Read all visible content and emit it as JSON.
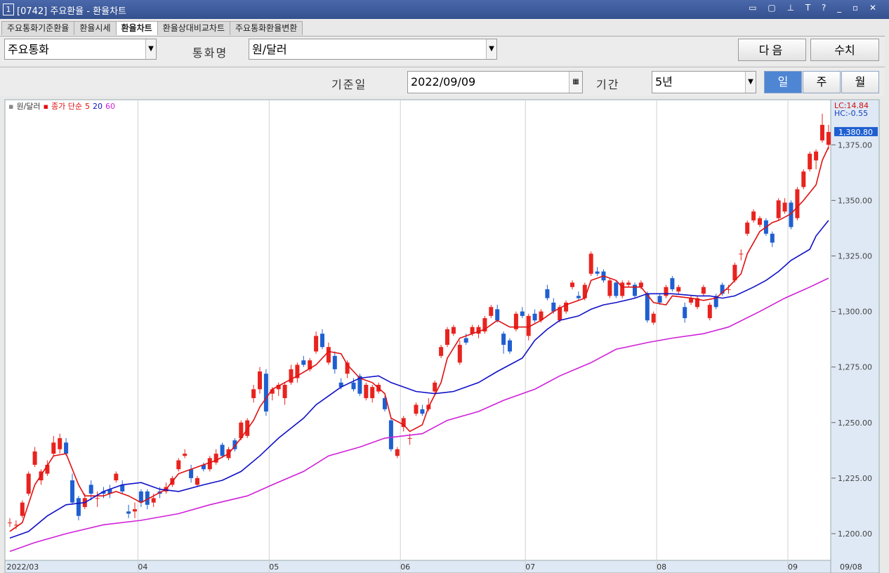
{
  "window": {
    "badge": "1",
    "title": "[0742] 주요환율 - 환율차트"
  },
  "tabs": [
    "주요통화기준환율",
    "환율시세",
    "환율차트",
    "환율상대비교차트",
    "주요통화환율변환"
  ],
  "active_tab": 2,
  "toolbar": {
    "group_select": "주요통화",
    "currency_label": "통화명",
    "currency_select": "원/달러",
    "buttons": [
      "다음",
      "수치"
    ],
    "date_label": "기준일",
    "date_value": "2022/09/09",
    "period_label": "기간",
    "period_select": "5년",
    "interval_buttons": [
      "일",
      "주",
      "월"
    ],
    "active_interval": 0
  },
  "chart_data": {
    "type": "candlestick",
    "legend": {
      "symbol": "원/달러",
      "ma_label": "종가 단순"
    },
    "lc_label": "LC:14.84",
    "hc_label": "HC:-0.55",
    "end_date_label": "09/08",
    "current_price": {
      "value": 1380.8,
      "label": "1,380.80"
    },
    "up_color": "#e8231e",
    "down_color": "#1f5fd0",
    "grid": true,
    "ylim": [
      1188.3,
      1395
    ],
    "yticks": [
      {
        "value": 1200,
        "label": "1,200.00"
      },
      {
        "value": 1225,
        "label": "1,225.00"
      },
      {
        "value": 1250,
        "label": "1,250.00"
      },
      {
        "value": 1275,
        "label": "1,275.00"
      },
      {
        "value": 1300,
        "label": "1,300.00"
      },
      {
        "value": 1325,
        "label": "1,325.00"
      },
      {
        "value": 1350,
        "label": "1,350.00"
      },
      {
        "value": 1375,
        "label": "1,375.00"
      }
    ],
    "categories": [
      "2022/03",
      null,
      null,
      null,
      null,
      null,
      null,
      null,
      null,
      null,
      null,
      null,
      null,
      null,
      null,
      null,
      null,
      null,
      null,
      null,
      null,
      "04",
      null,
      null,
      null,
      null,
      null,
      null,
      null,
      null,
      null,
      null,
      null,
      null,
      null,
      null,
      null,
      null,
      null,
      null,
      null,
      null,
      "05",
      null,
      null,
      null,
      null,
      null,
      null,
      null,
      null,
      null,
      null,
      null,
      null,
      null,
      null,
      null,
      null,
      null,
      null,
      null,
      null,
      "06",
      null,
      null,
      null,
      null,
      null,
      null,
      null,
      null,
      null,
      null,
      null,
      null,
      null,
      null,
      null,
      null,
      null,
      null,
      null,
      "07",
      null,
      null,
      null,
      null,
      null,
      null,
      null,
      null,
      null,
      null,
      null,
      null,
      null,
      null,
      null,
      null,
      null,
      null,
      null,
      null,
      "08",
      null,
      null,
      null,
      null,
      null,
      null,
      null,
      null,
      null,
      null,
      null,
      null,
      null,
      null,
      null,
      null,
      null,
      null,
      null,
      null,
      "09",
      null,
      null,
      null,
      null,
      null
    ],
    "candles": [
      [
        1205,
        1207,
        1203,
        1205
      ],
      [
        1204,
        1206,
        1202,
        1204
      ],
      [
        1208,
        1215,
        1207,
        1214
      ],
      [
        1218,
        1228,
        1217,
        1227
      ],
      [
        1231,
        1239,
        1230,
        1237
      ],
      [
        1224,
        1229,
        1222,
        1228
      ],
      [
        1227,
        1233,
        1226,
        1231
      ],
      [
        1236,
        1244,
        1235,
        1241
      ],
      [
        1238,
        1245,
        1236,
        1243
      ],
      [
        1241,
        1243,
        1235,
        1236
      ],
      [
        1224,
        1227,
        1213,
        1214
      ],
      [
        1216,
        1217,
        1206,
        1208
      ],
      [
        1212,
        1218,
        1211,
        1216
      ],
      [
        1222,
        1224,
        1215,
        1218
      ],
      [
        1216,
        1219,
        1212,
        1216
      ],
      [
        1219,
        1221,
        1216,
        1218
      ],
      [
        1220,
        1222,
        1216,
        1218
      ],
      [
        1224,
        1228,
        1223,
        1227
      ],
      [
        1222,
        1224,
        1218,
        1219
      ],
      [
        1210,
        1213,
        1207,
        1209
      ],
      [
        1210,
        1214,
        1207,
        1211
      ],
      [
        1219,
        1220,
        1212,
        1214
      ],
      [
        1219,
        1220,
        1211,
        1213
      ],
      [
        1214,
        1218,
        1212,
        1216
      ],
      [
        1219,
        1221,
        1216,
        1218
      ],
      [
        1219,
        1223,
        1218,
        1221
      ],
      [
        1222,
        1226,
        1221,
        1225
      ],
      [
        1229,
        1234,
        1228,
        1233
      ],
      [
        1235,
        1238,
        1234,
        1236
      ],
      [
        1229,
        1231,
        1223,
        1225
      ],
      [
        1222,
        1226,
        1221,
        1225
      ],
      [
        1231,
        1232,
        1228,
        1229
      ],
      [
        1229,
        1235,
        1228,
        1234
      ],
      [
        1232,
        1238,
        1231,
        1236
      ],
      [
        1240,
        1241,
        1234,
        1235
      ],
      [
        1234,
        1239,
        1233,
        1238
      ],
      [
        1242,
        1243,
        1237,
        1238
      ],
      [
        1243,
        1251,
        1242,
        1250
      ],
      [
        1244,
        1252,
        1243,
        1251
      ],
      [
        1261,
        1267,
        1259,
        1265
      ],
      [
        1265,
        1275,
        1263,
        1273
      ],
      [
        1272,
        1274,
        1253,
        1255
      ],
      [
        1263,
        1266,
        1260,
        1265
      ],
      [
        1265,
        1268,
        1262,
        1267
      ],
      [
        1261,
        1268,
        1258,
        1267
      ],
      [
        1268,
        1276,
        1267,
        1274
      ],
      [
        1270,
        1277,
        1268,
        1276
      ],
      [
        1278,
        1280,
        1275,
        1276
      ],
      [
        1274,
        1279,
        1273,
        1278
      ],
      [
        1282,
        1291,
        1281,
        1289
      ],
      [
        1290,
        1292,
        1283,
        1284
      ],
      [
        1277,
        1286,
        1276,
        1284
      ],
      [
        1280,
        1282,
        1272,
        1274
      ],
      [
        1268,
        1270,
        1265,
        1266
      ],
      [
        1272,
        1278,
        1270,
        1277
      ],
      [
        1268,
        1270,
        1264,
        1265
      ],
      [
        1271,
        1272,
        1262,
        1263
      ],
      [
        1261,
        1268,
        1260,
        1267
      ],
      [
        1261,
        1267,
        1259,
        1266
      ],
      [
        1264,
        1268,
        1263,
        1267
      ],
      [
        1261,
        1262,
        1255,
        1256
      ],
      [
        1251,
        1252,
        1237,
        1238
      ],
      [
        1235,
        1239,
        1234,
        1238
      ],
      [
        1248,
        1253,
        1246,
        1252
      ],
      [
        1243,
        1245,
        1240,
        1243
      ],
      [
        1254,
        1259,
        1253,
        1258
      ],
      [
        1256,
        1258,
        1253,
        1254
      ],
      [
        1256,
        1261,
        1255,
        1258
      ],
      [
        1264,
        1269,
        1263,
        1268
      ],
      [
        1280,
        1285,
        1279,
        1284
      ],
      [
        1285,
        1293,
        1284,
        1292
      ],
      [
        1290,
        1294,
        1289,
        1293
      ],
      [
        1277,
        1287,
        1276,
        1285
      ],
      [
        1288,
        1290,
        1285,
        1286
      ],
      [
        1290,
        1294,
        1289,
        1293
      ],
      [
        1290,
        1294,
        1288,
        1293
      ],
      [
        1291,
        1298,
        1290,
        1297
      ],
      [
        1298,
        1303,
        1297,
        1302
      ],
      [
        1301,
        1303,
        1295,
        1296
      ],
      [
        1290,
        1291,
        1281,
        1285
      ],
      [
        1287,
        1288,
        1281,
        1282
      ],
      [
        1292,
        1300,
        1291,
        1299
      ],
      [
        1300,
        1302,
        1297,
        1298
      ],
      [
        1289,
        1299,
        1287,
        1298
      ],
      [
        1299,
        1301,
        1295,
        1296
      ],
      [
        1296,
        1301,
        1295,
        1300
      ],
      [
        1310,
        1312,
        1305,
        1306
      ],
      [
        1304,
        1306,
        1299,
        1300
      ],
      [
        1296,
        1303,
        1295,
        1302
      ],
      [
        1300,
        1305,
        1299,
        1304
      ],
      [
        1311,
        1314,
        1310,
        1313
      ],
      [
        1307,
        1309,
        1305,
        1306
      ],
      [
        1306,
        1313,
        1305,
        1312
      ],
      [
        1317,
        1327,
        1316,
        1326
      ],
      [
        1318,
        1320,
        1316,
        1317
      ],
      [
        1318,
        1319,
        1313,
        1314
      ],
      [
        1307,
        1315,
        1306,
        1314
      ],
      [
        1313,
        1314,
        1306,
        1307
      ],
      [
        1307,
        1314,
        1306,
        1313
      ],
      [
        1312,
        1314,
        1311,
        1313
      ],
      [
        1312,
        1313,
        1306,
        1307
      ],
      [
        1311,
        1314,
        1310,
        1313
      ],
      [
        1308,
        1309,
        1295,
        1296
      ],
      [
        1295,
        1300,
        1294,
        1299
      ],
      [
        1307,
        1308,
        1303,
        1304
      ],
      [
        1307,
        1312,
        1306,
        1311
      ],
      [
        1315,
        1316,
        1309,
        1310
      ],
      [
        1309,
        1312,
        1308,
        1311
      ],
      [
        1302,
        1304,
        1295,
        1297
      ],
      [
        1304,
        1307,
        1303,
        1306
      ],
      [
        1302,
        1307,
        1301,
        1306
      ],
      [
        1308,
        1312,
        1307,
        1311
      ],
      [
        1297,
        1304,
        1296,
        1303
      ],
      [
        1307,
        1308,
        1301,
        1302
      ],
      [
        1312,
        1313,
        1307,
        1308
      ],
      [
        1310,
        1312,
        1308,
        1310
      ],
      [
        1314,
        1322,
        1313,
        1321
      ],
      [
        1326,
        1328,
        1323,
        1326
      ],
      [
        1335,
        1341,
        1334,
        1340
      ],
      [
        1341,
        1346,
        1340,
        1345
      ],
      [
        1339,
        1343,
        1338,
        1342
      ],
      [
        1341,
        1342,
        1334,
        1335
      ],
      [
        1335,
        1336,
        1329,
        1331
      ],
      [
        1342,
        1351,
        1341,
        1350
      ],
      [
        1345,
        1351,
        1344,
        1349
      ],
      [
        1349,
        1350,
        1337,
        1338
      ],
      [
        1342,
        1356,
        1341,
        1355
      ],
      [
        1356,
        1364,
        1355,
        1363
      ],
      [
        1364,
        1372,
        1363,
        1371
      ],
      [
        1368,
        1373,
        1364,
        1372
      ],
      [
        1377,
        1389,
        1376,
        1384
      ],
      [
        1375,
        1384,
        1373,
        1380.8
      ]
    ],
    "series": [
      {
        "name": "5",
        "color": "#e01010",
        "x": [
          0,
          2,
          4,
          7,
          9,
          11,
          12,
          15,
          17,
          19,
          21,
          23,
          25,
          27,
          29,
          31,
          33,
          35,
          37,
          39,
          40,
          42,
          44,
          46,
          49,
          51,
          53,
          54,
          56,
          58,
          60,
          61,
          63,
          64,
          66,
          67,
          69,
          70,
          72,
          76,
          78,
          80,
          83,
          85,
          87,
          89,
          92,
          93,
          95,
          97,
          98,
          101,
          103,
          105,
          106,
          109,
          111,
          113,
          115,
          117,
          118,
          120,
          122,
          123,
          125,
          127,
          129,
          130,
          131
        ],
        "values": [
          1201,
          1205,
          1222,
          1235,
          1236,
          1222,
          1217,
          1217,
          1219,
          1217,
          1214,
          1217,
          1220,
          1227,
          1229,
          1231,
          1233,
          1236,
          1243,
          1251,
          1257,
          1265,
          1268,
          1271,
          1276,
          1282,
          1281,
          1276,
          1270,
          1268,
          1263,
          1252,
          1249,
          1246,
          1249,
          1257,
          1268,
          1279,
          1288,
          1292,
          1296,
          1293,
          1293,
          1296,
          1300,
          1303,
          1306,
          1314,
          1316,
          1314,
          1311,
          1311,
          1304,
          1303,
          1307,
          1306,
          1305,
          1306,
          1311,
          1317,
          1326,
          1336,
          1340,
          1341,
          1344,
          1350,
          1357,
          1368,
          1374
        ]
      },
      {
        "name": "20",
        "color": "#1010c8",
        "x": [
          0,
          3,
          6,
          9,
          12,
          15,
          18,
          21,
          24,
          27,
          31,
          34,
          37,
          40,
          43,
          47,
          49,
          51,
          53,
          56,
          59,
          61,
          65,
          68,
          71,
          75,
          78,
          82,
          84,
          86,
          88,
          91,
          93,
          95,
          97,
          100,
          102,
          104,
          106,
          110,
          112,
          114,
          116,
          119,
          121,
          123,
          125,
          128,
          129,
          131
        ],
        "values": [
          1198,
          1201,
          1208,
          1213,
          1214,
          1219,
          1222,
          1223,
          1220,
          1219,
          1222,
          1224,
          1228,
          1235,
          1243,
          1252,
          1258,
          1262,
          1266,
          1270,
          1271,
          1268,
          1264,
          1263,
          1264,
          1268,
          1273,
          1279,
          1287,
          1292,
          1296,
          1298,
          1301,
          1303,
          1304,
          1306,
          1308,
          1308,
          1308,
          1307,
          1307,
          1306,
          1307,
          1311,
          1314,
          1318,
          1323,
          1328,
          1334,
          1341
        ]
      },
      {
        "name": "60",
        "color": "#d020d8",
        "x": [
          0,
          4,
          9,
          15,
          21,
          27,
          32,
          38,
          42,
          47,
          51,
          56,
          60,
          66,
          70,
          75,
          79,
          84,
          88,
          93,
          97,
          102,
          106,
          111,
          115,
          120,
          124,
          128,
          131
        ],
        "values": [
          1192,
          1196,
          1200,
          1204,
          1206,
          1209,
          1213,
          1217,
          1222,
          1228,
          1235,
          1239,
          1243,
          1245,
          1251,
          1255,
          1260,
          1265,
          1271,
          1277,
          1283,
          1286,
          1288,
          1290,
          1293,
          1300,
          1306,
          1311,
          1315
        ]
      }
    ]
  }
}
